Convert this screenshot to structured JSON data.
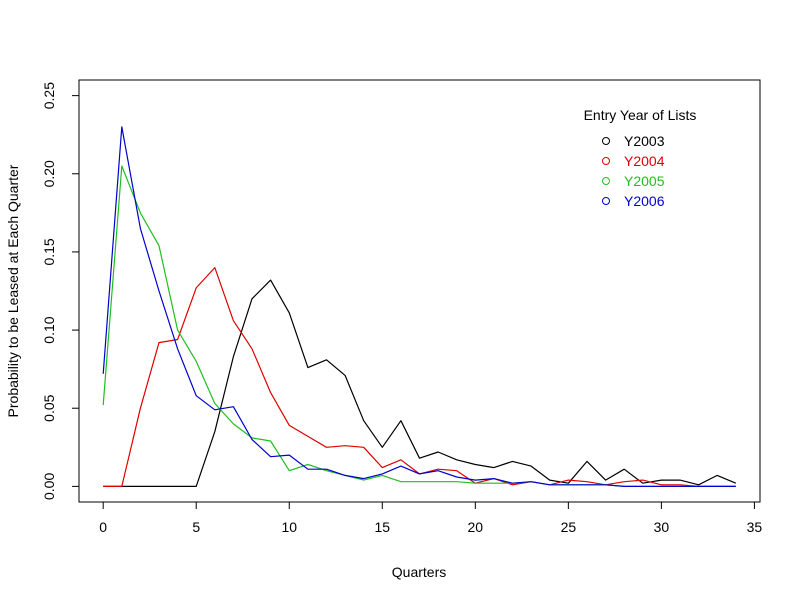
{
  "chart_data": {
    "type": "line",
    "title": "",
    "xlabel": "Quarters",
    "ylabel": "Probability to be Leased at Each Quarter",
    "xlim": [
      -1.3,
      35.3
    ],
    "ylim": [
      -0.01,
      0.26
    ],
    "xticks": [
      0,
      5,
      10,
      15,
      20,
      25,
      30,
      35
    ],
    "xtick_labels": [
      "0",
      "5",
      "10",
      "15",
      "20",
      "25",
      "30",
      "35"
    ],
    "yticks": [
      0.0,
      0.05,
      0.1,
      0.15,
      0.2,
      0.25
    ],
    "ytick_labels": [
      "0.00",
      "0.05",
      "0.10",
      "0.15",
      "0.20",
      "0.25"
    ],
    "grid": false,
    "legend": {
      "title": "Entry Year of Lists",
      "position": "top-right"
    },
    "x": [
      0,
      1,
      2,
      3,
      4,
      5,
      6,
      7,
      8,
      9,
      10,
      11,
      12,
      13,
      14,
      15,
      16,
      17,
      18,
      19,
      20,
      21,
      22,
      23,
      24,
      25,
      26,
      27,
      28,
      29,
      30,
      31,
      32,
      33,
      34
    ],
    "series": [
      {
        "name": "Y2003",
        "color": "#000000",
        "values": [
          0,
          0,
          0,
          0,
          0,
          0,
          0.035,
          0.083,
          0.12,
          0.132,
          0.111,
          0.076,
          0.081,
          0.071,
          0.042,
          0.025,
          0.042,
          0.018,
          0.022,
          0.017,
          0.014,
          0.012,
          0.016,
          0.013,
          0.004,
          0.002,
          0.016,
          0.004,
          0.011,
          0.002,
          0.004,
          0.004,
          0.001,
          0.007,
          0.002
        ]
      },
      {
        "name": "Y2004",
        "color": "#df0000",
        "values": [
          0,
          0,
          0.05,
          0.092,
          0.094,
          0.127,
          0.14,
          0.106,
          0.088,
          0.06,
          0.039,
          0.032,
          0.025,
          0.026,
          0.025,
          0.012,
          0.017,
          0.008,
          0.011,
          0.01,
          0.002,
          0.005,
          0.001,
          0.003,
          0.001,
          0.004,
          0.003,
          0.001,
          0.003,
          0.004,
          0.001,
          0.001,
          0,
          0,
          0
        ]
      },
      {
        "name": "Y2005",
        "color": "#1fbf1f",
        "values": [
          0.052,
          0.205,
          0.175,
          0.154,
          0.1,
          0.08,
          0.053,
          0.04,
          0.031,
          0.029,
          0.01,
          0.014,
          0.01,
          0.007,
          0.004,
          0.007,
          0.003,
          0.003,
          0.003,
          0.003,
          0.002,
          0.002,
          0.002,
          0.003,
          0.001,
          0.001,
          0.001,
          0.001,
          0,
          0,
          0,
          0,
          0,
          0,
          0
        ]
      },
      {
        "name": "Y2006",
        "color": "#0000cf",
        "values": [
          0.072,
          0.23,
          0.165,
          0.125,
          0.088,
          0.058,
          0.049,
          0.051,
          0.03,
          0.019,
          0.02,
          0.011,
          0.011,
          0.007,
          0.005,
          0.008,
          0.013,
          0.008,
          0.01,
          0.006,
          0.004,
          0.005,
          0.002,
          0.003,
          0.001,
          0.001,
          0.001,
          0.001,
          0,
          0,
          0,
          0,
          0,
          0,
          0
        ]
      }
    ]
  }
}
